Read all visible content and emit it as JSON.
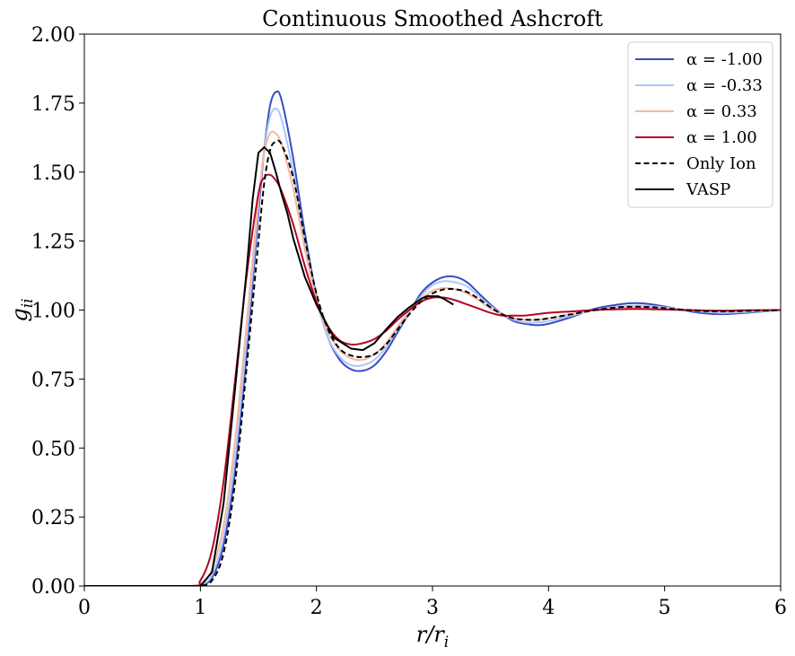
{
  "chart_data": {
    "type": "line",
    "title": "Continuous Smoothed Ashcroft",
    "xlabel": "r/r_i",
    "ylabel": "g_ii",
    "xlim": [
      0,
      6
    ],
    "ylim": [
      0,
      2
    ],
    "xticks": [
      0,
      1,
      2,
      3,
      4,
      5,
      6
    ],
    "xtick_labels": [
      "0",
      "1",
      "2",
      "3",
      "4",
      "5",
      "6"
    ],
    "yticks": [
      0,
      0.25,
      0.5,
      0.75,
      1.0,
      1.25,
      1.5,
      1.75,
      2.0
    ],
    "ytick_labels": [
      "0.00",
      "0.25",
      "0.50",
      "0.75",
      "1.00",
      "1.25",
      "1.50",
      "1.75",
      "2.00"
    ],
    "grid": false,
    "legend_position": "top-right",
    "series": [
      {
        "name": "α = -1.00",
        "color": "#3b4cc0",
        "style": "solid",
        "x": [
          0,
          0.9,
          1.0,
          1.1,
          1.2,
          1.3,
          1.4,
          1.5,
          1.55,
          1.6,
          1.65,
          1.7,
          1.8,
          1.9,
          2.0,
          2.1,
          2.2,
          2.3,
          2.4,
          2.5,
          2.6,
          2.7,
          2.8,
          2.9,
          3.0,
          3.1,
          3.2,
          3.3,
          3.4,
          3.5,
          3.6,
          3.7,
          3.8,
          3.9,
          4.0,
          4.2,
          4.4,
          4.6,
          4.75,
          4.9,
          5.1,
          5.3,
          5.5,
          5.7,
          6.0
        ],
        "y": [
          0,
          0,
          0.002,
          0.03,
          0.15,
          0.42,
          0.85,
          1.35,
          1.58,
          1.74,
          1.79,
          1.76,
          1.55,
          1.28,
          1.05,
          0.9,
          0.82,
          0.785,
          0.78,
          0.8,
          0.85,
          0.92,
          0.99,
          1.06,
          1.1,
          1.12,
          1.12,
          1.1,
          1.06,
          1.02,
          0.985,
          0.96,
          0.95,
          0.945,
          0.95,
          0.975,
          1.005,
          1.02,
          1.025,
          1.02,
          1.005,
          0.99,
          0.985,
          0.99,
          1.0
        ]
      },
      {
        "name": "α = -0.33",
        "color": "#aac7fd",
        "style": "solid",
        "x": [
          0,
          0.9,
          1.0,
          1.1,
          1.2,
          1.3,
          1.4,
          1.5,
          1.55,
          1.6,
          1.65,
          1.7,
          1.8,
          1.9,
          2.0,
          2.1,
          2.2,
          2.3,
          2.4,
          2.5,
          2.6,
          2.7,
          2.8,
          2.9,
          3.0,
          3.1,
          3.2,
          3.3,
          3.4,
          3.5,
          3.6,
          3.7,
          3.8,
          3.9,
          4.0,
          4.2,
          4.4,
          4.6,
          4.75,
          4.9,
          5.1,
          5.3,
          5.5,
          5.7,
          6.0
        ],
        "y": [
          0,
          0,
          0.004,
          0.04,
          0.18,
          0.47,
          0.9,
          1.38,
          1.58,
          1.7,
          1.73,
          1.69,
          1.5,
          1.25,
          1.04,
          0.9,
          0.83,
          0.8,
          0.8,
          0.82,
          0.865,
          0.93,
          0.99,
          1.05,
          1.09,
          1.105,
          1.1,
          1.085,
          1.05,
          1.015,
          0.985,
          0.965,
          0.955,
          0.955,
          0.96,
          0.98,
          1.0,
          1.012,
          1.016,
          1.014,
          1.005,
          0.995,
          0.99,
          0.993,
          1.0
        ]
      },
      {
        "name": "α = 0.33",
        "color": "#f7b89c",
        "style": "solid",
        "x": [
          0,
          0.9,
          1.0,
          1.1,
          1.2,
          1.3,
          1.4,
          1.5,
          1.55,
          1.6,
          1.65,
          1.7,
          1.8,
          1.9,
          2.0,
          2.1,
          2.2,
          2.3,
          2.4,
          2.5,
          2.6,
          2.7,
          2.8,
          2.9,
          3.0,
          3.1,
          3.2,
          3.3,
          3.4,
          3.5,
          3.6,
          3.7,
          3.8,
          3.9,
          4.0,
          4.2,
          4.4,
          4.6,
          4.75,
          4.9,
          5.1,
          5.3,
          5.5,
          5.7,
          6.0
        ],
        "y": [
          0,
          0,
          0.008,
          0.06,
          0.22,
          0.53,
          0.96,
          1.4,
          1.57,
          1.64,
          1.64,
          1.6,
          1.44,
          1.22,
          1.04,
          0.92,
          0.855,
          0.825,
          0.82,
          0.84,
          0.88,
          0.94,
          0.995,
          1.04,
          1.07,
          1.08,
          1.075,
          1.06,
          1.035,
          1.005,
          0.985,
          0.97,
          0.965,
          0.965,
          0.97,
          0.985,
          1.0,
          1.008,
          1.01,
          1.008,
          1.002,
          0.997,
          0.995,
          0.997,
          1.0
        ]
      },
      {
        "name": "α = 1.00",
        "color": "#b40426",
        "style": "solid",
        "x": [
          0,
          0.9,
          1.0,
          1.1,
          1.2,
          1.3,
          1.4,
          1.5,
          1.55,
          1.6,
          1.65,
          1.7,
          1.8,
          1.9,
          2.0,
          2.1,
          2.2,
          2.3,
          2.4,
          2.5,
          2.6,
          2.7,
          2.8,
          2.9,
          3.0,
          3.1,
          3.2,
          3.3,
          3.4,
          3.5,
          3.6,
          3.7,
          3.8,
          3.9,
          4.0,
          4.2,
          4.4,
          4.6,
          4.75,
          4.9,
          5.1,
          5.3,
          5.5,
          5.7,
          6.0
        ],
        "y": [
          0,
          0,
          0.02,
          0.13,
          0.38,
          0.75,
          1.13,
          1.42,
          1.48,
          1.49,
          1.47,
          1.43,
          1.31,
          1.16,
          1.03,
          0.94,
          0.89,
          0.875,
          0.88,
          0.895,
          0.925,
          0.965,
          1.0,
          1.03,
          1.045,
          1.045,
          1.035,
          1.02,
          1.005,
          0.99,
          0.98,
          0.98,
          0.98,
          0.985,
          0.99,
          0.995,
          1.0,
          1.003,
          1.004,
          1.003,
          1.001,
          0.999,
          0.998,
          0.999,
          1.0
        ]
      },
      {
        "name": "Only Ion",
        "color": "#000000",
        "style": "dashed",
        "x": [
          0,
          0.9,
          1.0,
          1.1,
          1.2,
          1.3,
          1.4,
          1.5,
          1.55,
          1.6,
          1.65,
          1.7,
          1.8,
          1.9,
          2.0,
          2.1,
          2.2,
          2.3,
          2.4,
          2.5,
          2.6,
          2.7,
          2.8,
          2.9,
          3.0,
          3.1,
          3.2,
          3.3,
          3.4,
          3.5,
          3.6,
          3.7,
          3.8,
          3.9,
          4.0,
          4.2,
          4.4,
          4.6,
          4.75,
          4.9,
          5.1,
          5.3,
          5.5,
          5.7,
          6.0
        ],
        "y": [
          0,
          0,
          0.001,
          0.02,
          0.12,
          0.38,
          0.8,
          1.25,
          1.46,
          1.58,
          1.61,
          1.6,
          1.48,
          1.26,
          1.06,
          0.93,
          0.86,
          0.835,
          0.83,
          0.84,
          0.875,
          0.93,
          0.985,
          1.03,
          1.06,
          1.075,
          1.075,
          1.065,
          1.04,
          1.01,
          0.985,
          0.97,
          0.965,
          0.965,
          0.97,
          0.985,
          1.0,
          1.01,
          1.012,
          1.01,
          1.003,
          0.997,
          0.995,
          0.997,
          1.0
        ]
      },
      {
        "name": "VASP",
        "color": "#000000",
        "style": "solid",
        "x": [
          0,
          1.0,
          1.1,
          1.2,
          1.3,
          1.4,
          1.45,
          1.5,
          1.55,
          1.6,
          1.65,
          1.7,
          1.75,
          1.8,
          1.9,
          2.0,
          2.15,
          2.3,
          2.4,
          2.5,
          2.6,
          2.7,
          2.8,
          2.9,
          2.95,
          3.05,
          3.1,
          3.18
        ],
        "y": [
          0,
          0,
          0.05,
          0.3,
          0.72,
          1.15,
          1.4,
          1.57,
          1.59,
          1.57,
          1.5,
          1.42,
          1.35,
          1.26,
          1.12,
          1.02,
          0.9,
          0.86,
          0.855,
          0.88,
          0.93,
          0.975,
          1.01,
          1.04,
          1.05,
          1.05,
          1.04,
          1.02
        ]
      }
    ]
  }
}
